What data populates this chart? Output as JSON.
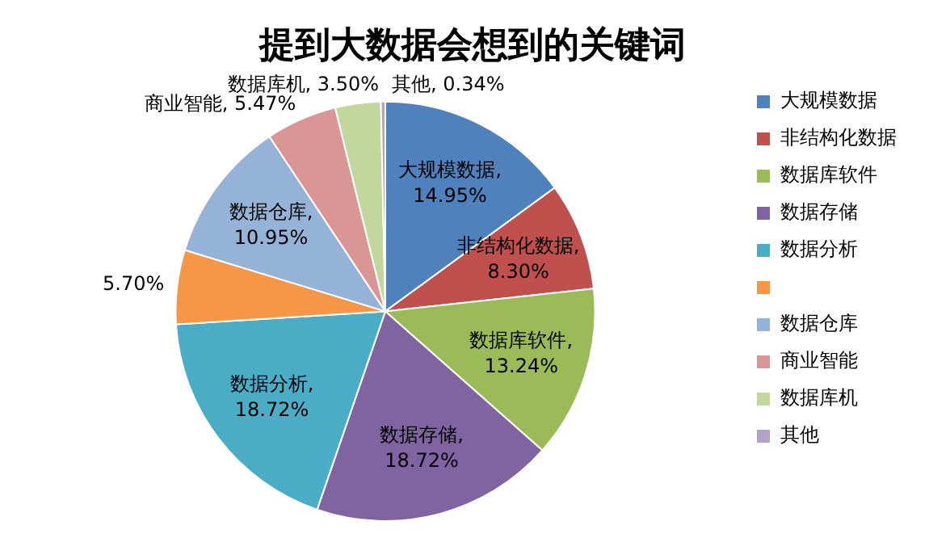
{
  "chart_data": {
    "type": "pie",
    "title": "提到大数据会想到的关键词",
    "categories": [
      "大规模数据",
      "非结构化数据",
      "数据库软件",
      "数据存储",
      "数据分析",
      null,
      "数据仓库",
      "商业智能",
      "数据库机",
      "其他"
    ],
    "values": [
      14.95,
      8.3,
      13.24,
      18.72,
      18.72,
      5.7,
      10.95,
      5.47,
      3.5,
      0.34
    ],
    "colors": [
      "#4f81bd",
      "#c0504d",
      "#9bbb59",
      "#8064a2",
      "#4bacc6",
      "#f79646",
      "#95b3d7",
      "#d99694",
      "#c3d69b",
      "#b3a2c7"
    ],
    "value_labels": [
      "大规模数据, 14.95%",
      "非结构化数据, 8.30%",
      "数据库软件, 13.24%",
      "数据存储, 18.72%",
      "数据分析, 18.72%",
      "5.70%",
      "数据仓库, 10.95%",
      "商业智能, 5.47%",
      "数据库机, 3.50%",
      "其他, 0.34%"
    ],
    "legend": "right"
  }
}
